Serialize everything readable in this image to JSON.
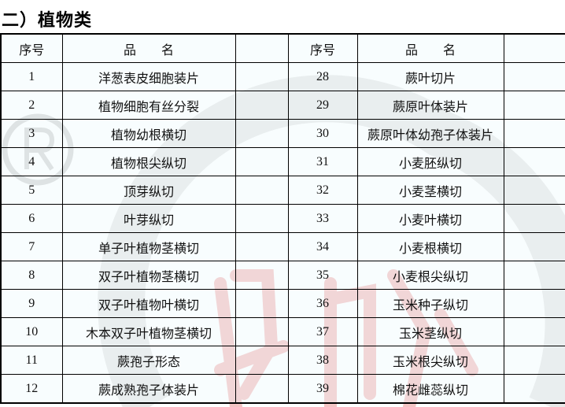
{
  "title": "二）植物类",
  "headers": {
    "no": "序号",
    "name": "品　　名"
  },
  "left_rows": [
    {
      "no": "1",
      "name": "洋葱表皮细胞装片"
    },
    {
      "no": "2",
      "name": "植物细胞有丝分裂"
    },
    {
      "no": "3",
      "name": "植物幼根横切"
    },
    {
      "no": "4",
      "name": "植物根尖纵切"
    },
    {
      "no": "5",
      "name": "顶芽纵切"
    },
    {
      "no": "6",
      "name": "叶芽纵切"
    },
    {
      "no": "7",
      "name": "单子叶植物茎横切"
    },
    {
      "no": "8",
      "name": "双子叶植物茎横切"
    },
    {
      "no": "9",
      "name": "双子叶植物叶横切"
    },
    {
      "no": "10",
      "name": "木本双子叶植物茎横切"
    },
    {
      "no": "11",
      "name": "蕨孢子形态"
    },
    {
      "no": "12",
      "name": "蕨成熟孢子体装片"
    }
  ],
  "right_rows": [
    {
      "no": "28",
      "name": "蕨叶切片"
    },
    {
      "no": "29",
      "name": "蕨原叶体装片"
    },
    {
      "no": "30",
      "name": "蕨原叶体幼孢子体装片"
    },
    {
      "no": "31",
      "name": "小麦胚纵切"
    },
    {
      "no": "32",
      "name": "小麦茎横切"
    },
    {
      "no": "33",
      "name": "小麦叶横切"
    },
    {
      "no": "34",
      "name": "小麦根横切"
    },
    {
      "no": "35",
      "name": "小麦根尖纵切"
    },
    {
      "no": "36",
      "name": "玉米种子纵切"
    },
    {
      "no": "37",
      "name": "玉米茎纵切"
    },
    {
      "no": "38",
      "name": "玉米根尖纵切"
    },
    {
      "no": "39",
      "name": "棉花雌蕊纵切"
    }
  ],
  "colors": {
    "watermark_red": "#f2b8b8",
    "watermark_gray": "#d8d8d8"
  }
}
